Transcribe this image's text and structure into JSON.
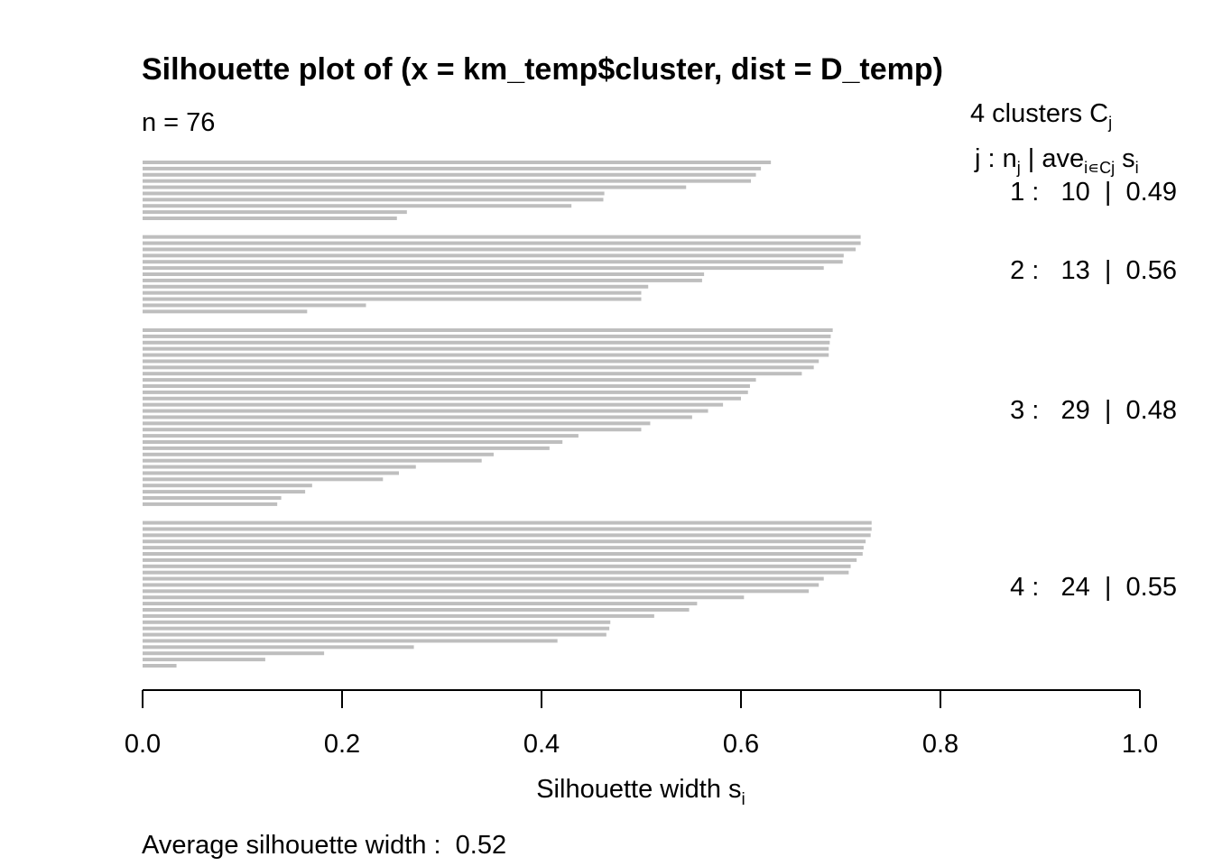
{
  "title": "Silhouette plot of (x = km_temp$cluster, dist = D_temp)",
  "n_label": "n = 76",
  "legend": {
    "head": "4  clusters  C",
    "head_sub": "j",
    "sub_j": "j :  n",
    "sub_nj": "j",
    "sub_ave": " | ave",
    "sub_ave_sub": "i∊Cj",
    "sub_s": "  s",
    "sub_s_sub": "i"
  },
  "cluster_rows": [
    {
      "text": "1 :   10  |  0.49"
    },
    {
      "text": "2 :   13  |  0.56"
    },
    {
      "text": "3 :   29  |  0.48"
    },
    {
      "text": "4 :   24  |  0.55"
    }
  ],
  "xlabel_main": "Silhouette width s",
  "xlabel_sub": "i",
  "average_label": "Average silhouette width :  0.52",
  "bar_color": "#bebebe",
  "chart_data": {
    "type": "bar",
    "orientation": "horizontal",
    "xlim": [
      0,
      1
    ],
    "x_ticks": [
      "0.0",
      "0.2",
      "0.4",
      "0.6",
      "0.8",
      "1.0"
    ],
    "clusters": [
      {
        "name": "1",
        "n": 10,
        "avg": 0.49,
        "values": [
          0.63,
          0.62,
          0.615,
          0.61,
          0.545,
          0.463,
          0.462,
          0.43,
          0.265,
          0.255
        ]
      },
      {
        "name": "2",
        "n": 13,
        "avg": 0.56,
        "values": [
          0.72,
          0.72,
          0.715,
          0.703,
          0.702,
          0.683,
          0.563,
          0.561,
          0.507,
          0.5,
          0.5,
          0.224,
          0.165
        ]
      },
      {
        "name": "3",
        "n": 29,
        "avg": 0.48,
        "values": [
          0.692,
          0.69,
          0.689,
          0.688,
          0.688,
          0.678,
          0.673,
          0.661,
          0.615,
          0.609,
          0.607,
          0.6,
          0.582,
          0.567,
          0.551,
          0.509,
          0.5,
          0.437,
          0.421,
          0.408,
          0.352,
          0.34,
          0.274,
          0.257,
          0.241,
          0.17,
          0.163,
          0.139,
          0.135
        ]
      },
      {
        "name": "4",
        "n": 24,
        "avg": 0.55,
        "values": [
          0.731,
          0.731,
          0.73,
          0.725,
          0.723,
          0.722,
          0.716,
          0.71,
          0.708,
          0.683,
          0.678,
          0.668,
          0.603,
          0.556,
          0.548,
          0.513,
          0.469,
          0.468,
          0.465,
          0.416,
          0.272,
          0.182,
          0.123,
          0.034
        ]
      }
    ]
  }
}
